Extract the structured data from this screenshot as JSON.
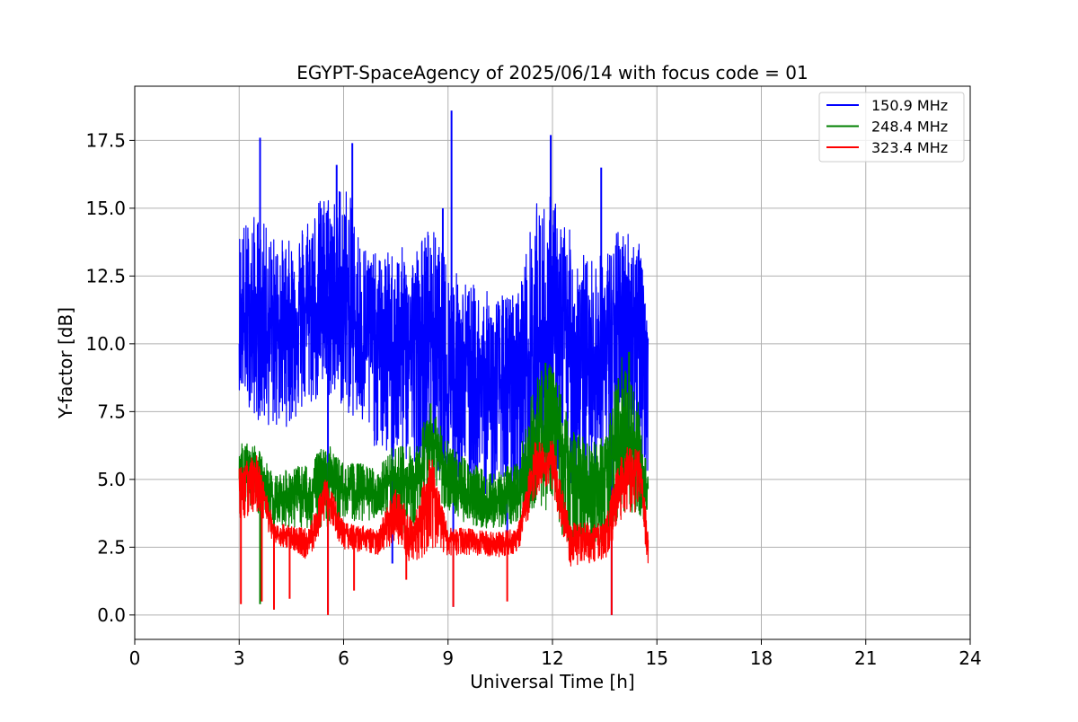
{
  "chart_data": {
    "type": "line",
    "title": "EGYPT-SpaceAgency of 2025/06/14 with focus code = 01",
    "xlabel": "Universal Time [h]",
    "ylabel": "Y-factor [dB]",
    "xlim": [
      0,
      24
    ],
    "ylim": [
      -0.9,
      19.5
    ],
    "xticks": [
      0,
      3,
      6,
      9,
      12,
      15,
      18,
      21,
      24
    ],
    "xtick_labels": [
      "0",
      "3",
      "6",
      "9",
      "12",
      "15",
      "18",
      "21",
      "24"
    ],
    "yticks": [
      0.0,
      2.5,
      5.0,
      7.5,
      10.0,
      12.5,
      15.0,
      17.5
    ],
    "ytick_labels": [
      "0.0",
      "2.5",
      "5.0",
      "7.5",
      "10.0",
      "12.5",
      "15.0",
      "17.5"
    ],
    "grid": true,
    "legend_position": "top-right",
    "series": [
      {
        "name": "150.9 MHz",
        "color": "#0000ff",
        "x": [
          3.0,
          3.5,
          4.0,
          4.5,
          5.0,
          5.5,
          6.0,
          6.5,
          7.0,
          7.5,
          8.0,
          8.5,
          9.0,
          9.5,
          10.0,
          10.5,
          11.0,
          11.5,
          12.0,
          12.5,
          13.0,
          13.5,
          14.0,
          14.5,
          14.75
        ],
        "low": [
          8.3,
          7.2,
          6.8,
          7.0,
          7.6,
          8.0,
          7.6,
          6.8,
          6.0,
          5.4,
          5.6,
          5.8,
          4.6,
          4.8,
          4.4,
          4.6,
          4.4,
          5.2,
          5.0,
          4.8,
          4.6,
          4.8,
          5.4,
          5.2,
          5.0
        ],
        "base": [
          10.4,
          10.5,
          10.8,
          11.0,
          11.4,
          11.8,
          11.3,
          10.6,
          10.1,
          9.9,
          10.0,
          10.3,
          9.0,
          8.6,
          8.5,
          8.4,
          8.6,
          9.5,
          10.2,
          10.0,
          9.6,
          9.8,
          10.6,
          10.8,
          10.2
        ],
        "high": [
          14.5,
          14.8,
          14.0,
          13.8,
          15.0,
          15.6,
          16.3,
          14.0,
          13.2,
          13.6,
          13.5,
          14.5,
          13.0,
          12.4,
          12.0,
          11.8,
          12.0,
          15.2,
          15.6,
          14.2,
          13.2,
          13.4,
          14.5,
          14.0,
          10.2
        ],
        "peaks": [
          [
            3.6,
            17.6
          ],
          [
            6.25,
            17.4
          ],
          [
            9.1,
            18.6
          ],
          [
            11.95,
            17.7
          ],
          [
            13.4,
            16.5
          ],
          [
            5.8,
            16.6
          ],
          [
            8.85,
            15.0
          ]
        ],
        "dips": [
          [
            5.55,
            0.1
          ],
          [
            9.15,
            0.3
          ],
          [
            7.4,
            1.9
          ],
          [
            10.7,
            2.6
          ],
          [
            13.7,
            0.0
          ]
        ]
      },
      {
        "name": "248.4 MHz",
        "color": "#008000",
        "x": [
          3.0,
          3.5,
          4.0,
          4.5,
          5.0,
          5.5,
          6.0,
          6.5,
          7.0,
          7.5,
          8.0,
          8.5,
          9.0,
          9.5,
          10.0,
          10.5,
          11.0,
          11.5,
          12.0,
          12.5,
          13.0,
          13.5,
          14.0,
          14.5,
          14.75
        ],
        "low": [
          4.2,
          3.8,
          3.4,
          3.2,
          3.2,
          3.2,
          3.6,
          3.4,
          3.6,
          3.0,
          3.0,
          4.8,
          3.6,
          3.4,
          3.2,
          3.2,
          3.4,
          4.0,
          3.4,
          2.4,
          2.4,
          2.4,
          3.8,
          3.4,
          2.8
        ],
        "base": [
          5.4,
          5.6,
          4.2,
          4.6,
          4.2,
          5.3,
          4.6,
          4.5,
          4.4,
          5.1,
          4.6,
          6.8,
          5.0,
          4.4,
          4.2,
          4.1,
          4.3,
          6.0,
          7.2,
          5.6,
          5.0,
          5.2,
          6.6,
          5.8,
          4.6
        ],
        "high": [
          6.4,
          6.2,
          5.2,
          5.4,
          5.6,
          6.4,
          5.6,
          5.6,
          5.4,
          6.4,
          6.2,
          7.8,
          6.4,
          5.8,
          5.4,
          5.4,
          5.6,
          8.8,
          9.4,
          7.0,
          6.4,
          6.6,
          9.6,
          8.0,
          5.0
        ],
        "peaks": [
          [
            14.2,
            9.7
          ],
          [
            11.8,
            9.3
          ],
          [
            8.5,
            7.8
          ]
        ],
        "dips": [
          [
            3.6,
            0.4
          ],
          [
            4.0,
            0.2
          ]
        ]
      },
      {
        "name": "323.4 MHz",
        "color": "#ff0000",
        "x": [
          3.0,
          3.5,
          4.0,
          4.5,
          5.0,
          5.5,
          6.0,
          6.5,
          7.0,
          7.5,
          8.0,
          8.5,
          9.0,
          9.5,
          10.0,
          10.5,
          11.0,
          11.5,
          12.0,
          12.5,
          13.0,
          13.5,
          14.0,
          14.5,
          14.75
        ],
        "low": [
          3.4,
          3.6,
          2.6,
          2.4,
          2.0,
          3.6,
          2.4,
          2.3,
          2.2,
          2.6,
          1.8,
          2.4,
          2.2,
          2.2,
          2.2,
          2.1,
          2.2,
          4.4,
          4.6,
          1.8,
          1.9,
          2.0,
          3.6,
          3.8,
          1.8
        ],
        "base": [
          4.6,
          5.1,
          3.0,
          2.9,
          2.7,
          4.5,
          3.0,
          2.9,
          2.8,
          3.8,
          2.9,
          5.1,
          2.8,
          2.8,
          2.7,
          2.7,
          2.8,
          5.6,
          5.6,
          2.9,
          2.9,
          2.9,
          5.1,
          5.3,
          2.6
        ],
        "high": [
          5.6,
          5.9,
          3.4,
          3.3,
          3.2,
          5.2,
          3.4,
          3.3,
          3.2,
          4.8,
          3.4,
          6.0,
          3.2,
          3.2,
          3.1,
          3.1,
          3.2,
          6.4,
          6.5,
          3.4,
          3.4,
          3.4,
          6.2,
          6.1,
          3.1
        ],
        "peaks": [],
        "dips": [
          [
            3.05,
            0.4
          ],
          [
            3.65,
            0.5
          ],
          [
            4.0,
            0.2
          ],
          [
            4.45,
            0.6
          ],
          [
            5.55,
            0.0
          ],
          [
            6.3,
            0.9
          ],
          [
            7.8,
            1.3
          ],
          [
            9.15,
            0.3
          ],
          [
            10.7,
            0.5
          ],
          [
            13.7,
            0.0
          ]
        ]
      }
    ]
  }
}
